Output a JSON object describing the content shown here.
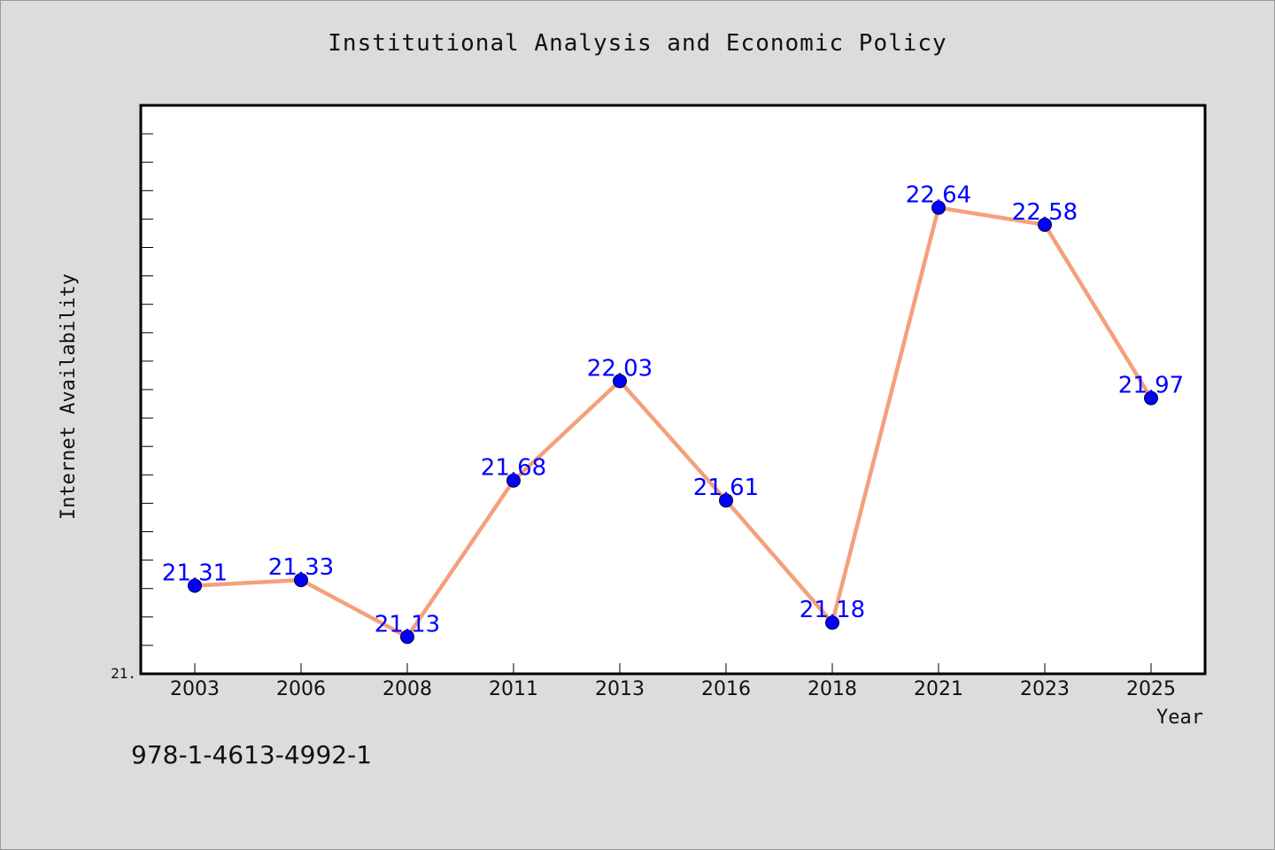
{
  "chart_data": {
    "type": "line",
    "title": "Institutional Analysis and Economic Policy",
    "xlabel": "Year",
    "ylabel": "Internet Availability",
    "categories": [
      "2003",
      "2006",
      "2008",
      "2011",
      "2013",
      "2016",
      "2018",
      "2021",
      "2023",
      "2025"
    ],
    "series": [
      {
        "values": [
          21.31,
          21.33,
          21.13,
          21.68,
          22.03,
          21.61,
          21.18,
          22.64,
          22.58,
          21.97
        ],
        "labels": [
          "21.31",
          "21.33",
          "21.13",
          "21.68",
          "22.03",
          "21.61",
          "21.18",
          "22.64",
          "22.58",
          "21.97"
        ],
        "line_color": "#f4a07c",
        "marker_color": "#0000ff"
      }
    ],
    "ylim": [
      21.0,
      23.0
    ],
    "ytick_label": "21.",
    "grid": false,
    "legend": "none"
  },
  "footer": {
    "isbn": "978-1-4613-4992-1"
  }
}
